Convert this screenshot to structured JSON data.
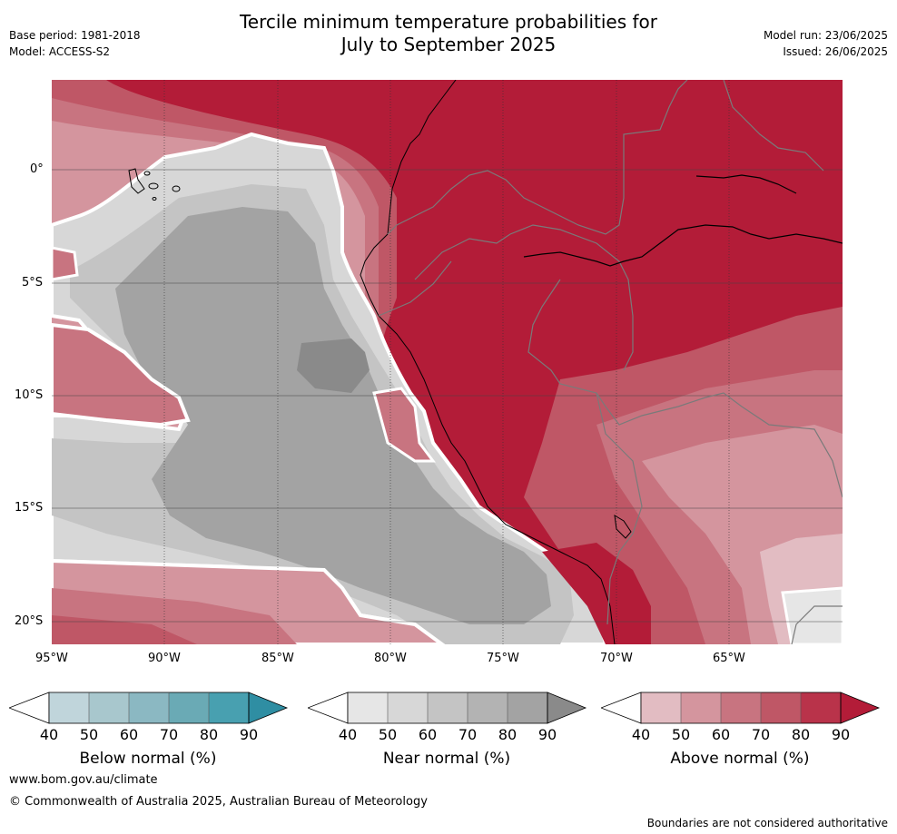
{
  "header": {
    "title_line1": "Tercile minimum temperature probabilities for",
    "title_line2": "July to September 2025",
    "base_period": "Base period: 1981-2018",
    "model": "Model: ACCESS-S2",
    "model_run": "Model run: 23/06/2025",
    "issued": "Issued: 26/06/2025"
  },
  "map": {
    "lon_labels": [
      "95°W",
      "90°W",
      "85°W",
      "80°W",
      "75°W",
      "70°W",
      "65°W"
    ],
    "lat_labels": [
      "0°",
      "5°S",
      "10°S",
      "15°S",
      "20°S"
    ],
    "colors": {
      "above": [
        "#e2bcc2",
        "#d4959e",
        "#c87480",
        "#bf5766",
        "#b9334a",
        "#b31c38"
      ],
      "near": [
        "#e6e6e6",
        "#d7d7d7",
        "#c4c4c4",
        "#b3b3b3",
        "#a3a3a3",
        "#8a8a8a"
      ],
      "below": [
        "#c0d5db",
        "#a8c7cd",
        "#8bb8c2",
        "#6aaab5",
        "#48a0b0",
        "#2f8ea3"
      ]
    }
  },
  "legends": [
    {
      "label": "Below normal (%)",
      "ticks": [
        "40",
        "50",
        "60",
        "70",
        "80",
        "90"
      ]
    },
    {
      "label": "Near normal (%)",
      "ticks": [
        "40",
        "50",
        "60",
        "70",
        "80",
        "90"
      ]
    },
    {
      "label": "Above normal (%)",
      "ticks": [
        "40",
        "50",
        "60",
        "70",
        "80",
        "90"
      ]
    }
  ],
  "footer": {
    "url": "www.bom.gov.au/climate",
    "copyright": "© Commonwealth of Australia 2025, Australian Bureau of Meteorology",
    "disclaimer": "Boundaries are not considered authoritative"
  }
}
